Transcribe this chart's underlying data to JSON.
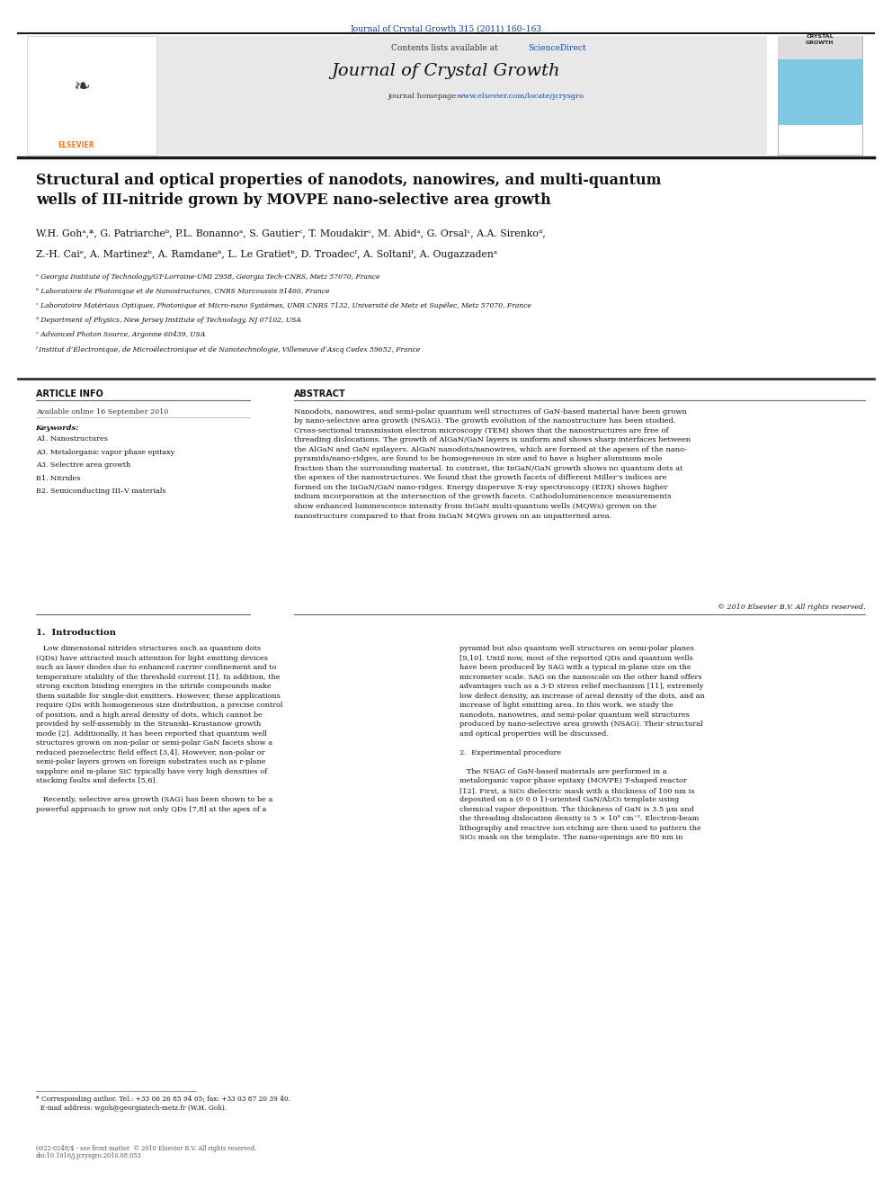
{
  "page_width": 9.92,
  "page_height": 13.23,
  "bg_color": "#ffffff",
  "header_journal_ref": "Journal of Crystal Growth 315 (2011) 160–163",
  "header_journal_ref_color": "#003399",
  "journal_name": "Journal of Crystal Growth",
  "contents_line": "Contents lists available at ",
  "sciencedirect": "ScienceDirect",
  "journal_homepage_label": "journal homepage: ",
  "journal_homepage_url": "www.elsevier.com/locate/jcrysgro",
  "header_bg": "#e8e8e8",
  "title": "Structural and optical properties of nanodots, nanowires, and multi-quantum\nwells of III-nitride grown by MOVPE nano-selective area growth",
  "authors_line1": "W.H. Gohᵃ,*, G. Patriarcheᵇ, P.L. Bonannoᵃ, S. Gautierᶜ, T. Moudakirᶜ, M. Abidᵃ, G. Orsalᶜ, A.A. Sirenkoᵈ,",
  "authors_line2": "Z.-H. Caiᵉ, A. Martinezᵇ, A. Ramdaneᵇ, L. Le Gratietᵇ, D. Troadecᶠ, A. Soltaniᶠ, A. Ougazzadenᵃ",
  "affiliations": [
    "ᵃ Georgia Institute of Technology/GT-Lorraine-UMI 2958, Georgia Tech-CNRS, Metz 57070, France",
    "ᵇ Laboratoire de Photonique et de Nanostructures, CNRS Marcoussis 91460, France",
    "ᶜ Laboratoire Matériaux Optiques, Photonique et Micro-nano Systèmes, UMR CNRS 7132, Université de Metz et Supélec, Metz 57070, France",
    "ᵈ Department of Physics, New Jersey Institute of Technology, NJ 07102, USA",
    "ᵉ Advanced Photon Source, Argonne 60439, USA",
    "ᶠ Institut d’Électronique, de Microélectronique et de Nanotechnologie, Villeneuve d’Ascq Cedex 59652, France"
  ],
  "article_info_header": "ARTICLE INFO",
  "abstract_header": "ABSTRACT",
  "available_online": "Available online 16 September 2010",
  "keywords_header": "Keywords:",
  "keywords": [
    "A1. Nanostructures",
    "A3. Metalorganic vapor phase epitaxy",
    "A3. Selective area growth",
    "B1. Nitrides",
    "B2. Semiconducting III–V materials"
  ],
  "abstract_text": "Nanodots, nanowires, and semi-polar quantum well structures of GaN-based material have been grown\nby nano-selective area growth (NSAG). The growth evolution of the nanostructure has been studied.\nCross-sectional transmission electron microscopy (TEM) shows that the nanostructures are free of\nthreading dislocations. The growth of AlGaN/GaN layers is uniform and shows sharp interfaces between\nthe AlGaN and GaN epilayers. AlGaN nanodots/nanowires, which are formed at the apexes of the nano-\npyramids/nano-ridges, are found to be homogeneous in size and to have a higher aluminum mole\nfraction than the surrounding material. In contrast, the InGaN/GaN growth shows no quantum dots at\nthe apexes of the nanostructures. We found that the growth facets of different Miller’s indices are\nformed on the InGaN/GaN nano-ridges. Energy dispersive X-ray spectroscopy (EDX) shows higher\nindium incorporation at the intersection of the growth facets. Cathodoluminescence measurements\nshow enhanced luminescence intensity from InGaN multi-quantum wells (MQWs) grown on the\nnanostructure compared to that from InGaN MQWs grown on an unpatterned area.",
  "copyright": "© 2010 Elsevier B.V. All rights reserved.",
  "section1_title": "1.  Introduction",
  "section1_left": "   Low dimensional nitrides structures such as quantum dots\n(QDs) have attracted much attention for light emitting devices\nsuch as laser diodes due to enhanced carrier confinement and to\ntemperature stability of the threshold current [1]. In addition, the\nstrong exciton binding energies in the nitride compounds make\nthem suitable for single-dot emitters. However, these applications\nrequire QDs with homogeneous size distribution, a precise control\nof position, and a high areal density of dots, which cannot be\nprovided by self-assembly in the Stranski–Krastanow growth\nmode [2]. Additionally, it has been reported that quantum well\nstructures grown on non-polar or semi-polar GaN facets show a\nreduced piezoelectric field effect [3,4]. However, non-polar or\nsemi-polar layers grown on foreign substrates such as r-plane\nsapphire and m-plane SiC typically have very high densities of\nstacking faults and defects [5,6].\n\n   Recently, selective area growth (SAG) has been shown to be a\npowerful approach to grow not only QDs [7,8] at the apex of a",
  "section1_right": "pyramid but also quantum well structures on semi-polar planes\n[9,10]. Until now, most of the reported QDs and quantum wells\nhave been produced by SAG with a typical in-plane size on the\nmicrometer scale. SAG on the nanoscale on the other hand offers\nadvantages such as a 3-D stress relief mechanism [11], extremely\nlow defect density, an increase of areal density of the dots, and an\nincrease of light emitting area. In this work, we study the\nnanodots, nanowires, and semi-polar quantum well structures\nproduced by nano-selective area growth (NSAG). Their structural\nand optical properties will be discussed.\n\n2.  Experimental procedure\n\n   The NSAG of GaN-based materials are performed in a\nmetalorganic vapor phase epitaxy (MOVPE) T-shaped reactor\n[12]. First, a SiO₂ dielectric mask with a thickness of 100 nm is\ndeposited on a (0 0 0 1)-oriented GaN/Al₂O₃ template using\nchemical vapor deposition. The thickness of GaN is 3.5 μm and\nthe threading dislocation density is 5 × 10⁸ cm⁻². Electron-beam\nlithography and reactive ion etching are then used to pattern the\nSiO₂ mask on the template. The nano-openings are 80 nm in",
  "footnote_line1": "* Corresponding author. Tel.: +33 06 26 85 94 65; fax: +33 03 87 20 39 40.",
  "footnote_line2": "  E-mail address: wgoh@georgiatech-metz.fr (W.H. Goh).",
  "issn_line": "0022-0248/$ - see front matter  © 2010 Elsevier B.V. All rights reserved.",
  "doi_line": "doi:10.1016/j.jcrysgro.2010.08.053",
  "top_bar_color": "#1a1a1a",
  "accent_color": "#f47920",
  "blue_link_color": "#0044cc",
  "cyan_box_color": "#7ec8e3",
  "elsevier_text": "ELSEVIER",
  "crystal_text1": "CRYSTAL",
  "crystal_text2": "GROWTH"
}
